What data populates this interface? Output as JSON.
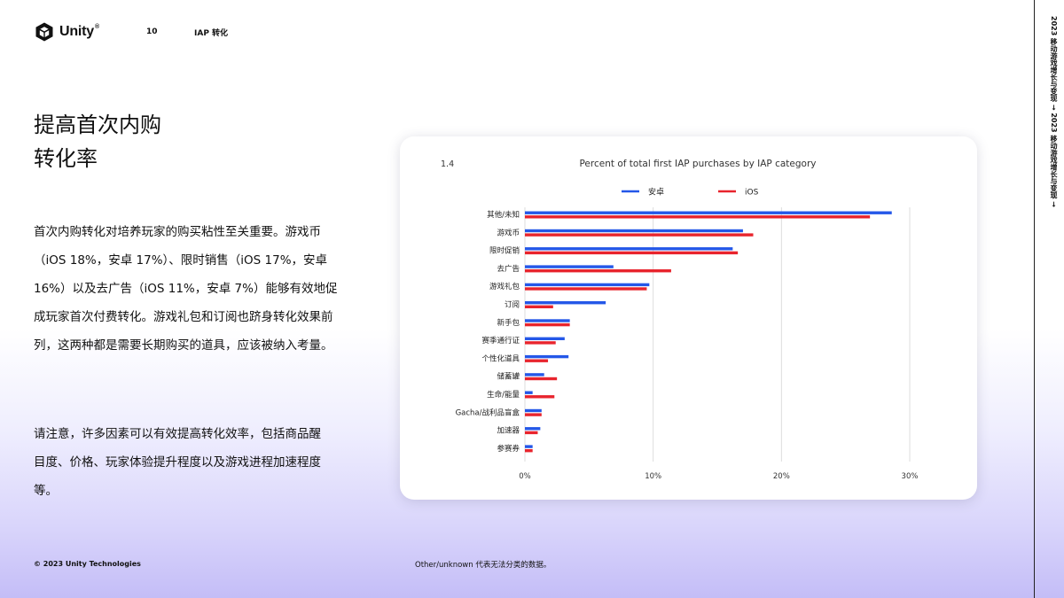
{
  "header": {
    "brand": "Unity",
    "brand_mark": "®",
    "page_number": "10",
    "section": "IAP 转化"
  },
  "title_lines": [
    "提高首次内购",
    "转化率"
  ],
  "paragraph1": "首次内购转化对培养玩家的购买粘性至关重要。游戏币（iOS 18%，安卓 17%）、限时销售（iOS 17%，安卓 16%）以及去广告（iOS 11%，安卓 7%）能够有效地促成玩家首次付费转化。游戏礼包和订阅也跻身转化效果前列，这两种都是需要长期购买的道具，应该被纳入考量。",
  "paragraph2": "请注意，许多因素可以有效提高转化效率，包括商品醒目度、价格、玩家体验提升程度以及游戏进程加速程度等。",
  "footer": {
    "copyright": "© 2023 Unity Technologies",
    "note": "Other/unknown 代表无法分类的数据。"
  },
  "side_text": "2023 移动游戏增长与变现 → 2023 移动游戏增长与变现 →",
  "colors": {
    "android": "#2457e8",
    "ios": "#e8242d",
    "grid": "#dddddd"
  },
  "chart_data": {
    "type": "bar",
    "orientation": "horizontal",
    "figure_number": "1.4",
    "title": "Percent of total first IAP purchases by IAP category",
    "categories": [
      "其他/未知",
      "游戏币",
      "限时促销",
      "去广告",
      "游戏礼包",
      "订阅",
      "新手包",
      "赛季通行证",
      "个性化道具",
      "储蓄罐",
      "生命/能量",
      "Gacha/战利品盲盒",
      "加速器",
      "参赛券"
    ],
    "series": [
      {
        "name": "安卓",
        "color": "#2457e8",
        "values": [
          28.6,
          17.0,
          16.2,
          6.9,
          9.7,
          6.3,
          3.5,
          3.1,
          3.4,
          1.5,
          0.6,
          1.3,
          1.2,
          0.6
        ]
      },
      {
        "name": "iOS",
        "color": "#e8242d",
        "values": [
          26.9,
          17.8,
          16.6,
          11.4,
          9.5,
          2.2,
          3.5,
          2.4,
          1.8,
          2.5,
          2.3,
          1.3,
          1.0,
          0.6
        ]
      }
    ],
    "x_ticks": [
      "0%",
      "10%",
      "20%",
      "30%"
    ],
    "xlim": [
      0,
      30
    ],
    "grid": true,
    "legend_position": "top"
  }
}
